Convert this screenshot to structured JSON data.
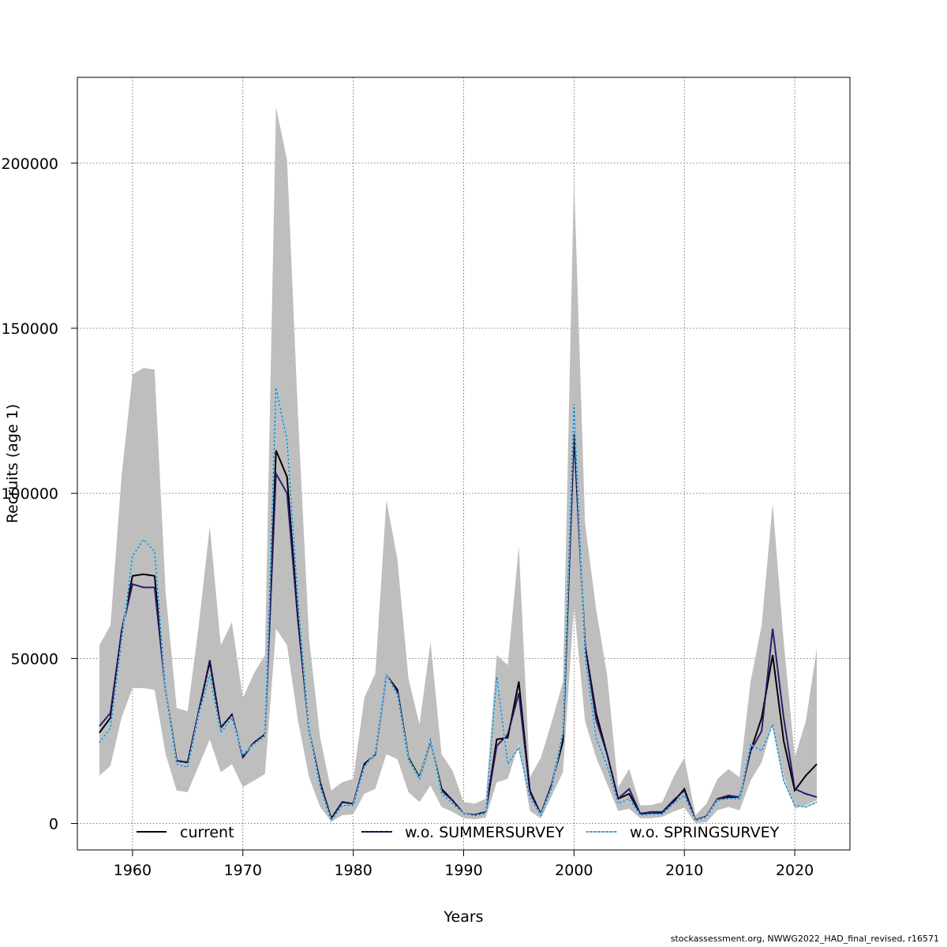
{
  "footer": "stockassessment.org, NWWG2022_HAD_final_revised, r16571",
  "chart_data": {
    "type": "line",
    "title": "",
    "xlabel": "Years",
    "ylabel": "Recruits (age 1)",
    "xlim": [
      1955,
      2025
    ],
    "ylim": [
      -8000,
      226000
    ],
    "xticks": [
      1960,
      1970,
      1980,
      1990,
      2000,
      2010,
      2020
    ],
    "yticks": [
      0,
      50000,
      100000,
      150000,
      200000
    ],
    "ytick_labels": [
      "0",
      "50000",
      "100000",
      "150000",
      "200000"
    ],
    "grid": true,
    "legend_position": "bottom",
    "colors": {
      "band": "#bebebe",
      "current": "#000000",
      "summer": "#2e1b6e",
      "spring": "#87ceeb"
    },
    "x": [
      1957,
      1958,
      1959,
      1960,
      1961,
      1962,
      1963,
      1964,
      1965,
      1966,
      1967,
      1968,
      1969,
      1970,
      1971,
      1972,
      1973,
      1974,
      1975,
      1976,
      1977,
      1978,
      1979,
      1980,
      1981,
      1982,
      1983,
      1984,
      1985,
      1986,
      1987,
      1988,
      1989,
      1990,
      1991,
      1992,
      1993,
      1994,
      1995,
      1996,
      1997,
      1998,
      1999,
      2000,
      2001,
      2002,
      2003,
      2004,
      2005,
      2006,
      2007,
      2008,
      2009,
      2010,
      2011,
      2012,
      2013,
      2014,
      2015,
      2016,
      2017,
      2018,
      2019,
      2020,
      2021,
      2022
    ],
    "band": {
      "name": "current confidence interval",
      "upper": [
        54000,
        60000,
        105000,
        136000,
        138000,
        137500,
        70000,
        35000,
        34000,
        60000,
        90000,
        54000,
        61000,
        38000,
        45500,
        51000,
        217000,
        201000,
        123000,
        56000,
        26000,
        10000,
        12500,
        13500,
        38000,
        45500,
        98000,
        80000,
        44000,
        30000,
        55000,
        21000,
        16000,
        6500,
        6000,
        7500,
        51000,
        48000,
        84000,
        14000,
        20000,
        31000,
        43000,
        196000,
        91000,
        65000,
        45000,
        11000,
        16500,
        5500,
        5600,
        6500,
        14000,
        20000,
        2500,
        6000,
        13500,
        16500,
        14000,
        43000,
        60000,
        97000,
        55000,
        20000,
        31000,
        53000
      ],
      "lower": [
        14500,
        17500,
        32000,
        41000,
        41000,
        40500,
        21000,
        10000,
        9500,
        17500,
        25500,
        15500,
        18000,
        11000,
        13000,
        15000,
        59000,
        54000,
        31000,
        14000,
        5000,
        600,
        2500,
        2800,
        9000,
        10500,
        21000,
        19500,
        9500,
        6500,
        11500,
        5000,
        3500,
        1600,
        1300,
        1800,
        12500,
        13500,
        24000,
        3800,
        1500,
        8500,
        15500,
        66000,
        31000,
        20000,
        12000,
        3800,
        4500,
        1600,
        1600,
        2000,
        3600,
        4800,
        100,
        400,
        4000,
        5000,
        4000,
        13000,
        18500,
        30000,
        14500,
        4500,
        5500,
        7000
      ]
    },
    "series": [
      {
        "name": "current",
        "values": [
          27500,
          32000,
          58000,
          75000,
          75500,
          75000,
          40000,
          19000,
          18500,
          34000,
          49000,
          29000,
          33000,
          20500,
          24500,
          27000,
          113000,
          105000,
          62000,
          28000,
          12500,
          1500,
          6500,
          6000,
          18000,
          21000,
          45000,
          40500,
          20000,
          14000,
          25000,
          10500,
          7000,
          3000,
          2600,
          3500,
          25500,
          26000,
          43000,
          10000,
          2800,
          12000,
          25000,
          118000,
          54000,
          33500,
          21000,
          7500,
          9000,
          3000,
          3000,
          3200,
          6500,
          10500,
          1000,
          2200,
          7000,
          8000,
          7500,
          22000,
          32000,
          51000,
          25000,
          10000,
          14500,
          18000
        ]
      },
      {
        "name": "w.o. SUMMERSURVEY",
        "values": [
          29500,
          33500,
          58000,
          72500,
          71500,
          71500,
          40000,
          19000,
          18500,
          34000,
          49500,
          29000,
          33000,
          20000,
          24500,
          27000,
          106000,
          100000,
          61000,
          28000,
          12500,
          1500,
          6500,
          6000,
          17500,
          21000,
          45000,
          40000,
          19500,
          13500,
          25000,
          10000,
          7000,
          3000,
          2600,
          3500,
          23500,
          27000,
          39500,
          9500,
          2800,
          12000,
          27000,
          118000,
          54000,
          31500,
          21000,
          7500,
          10500,
          3000,
          3500,
          3500,
          7000,
          10000,
          1000,
          2200,
          7500,
          8500,
          8000,
          22000,
          28000,
          59000,
          32000,
          10500,
          9000,
          8000
        ]
      },
      {
        "name": "w.o. SPRINGSURVEY",
        "values": [
          24500,
          29000,
          55000,
          81000,
          86000,
          82500,
          40000,
          18000,
          17000,
          33000,
          45000,
          27500,
          32000,
          21000,
          24000,
          26500,
          132000,
          116000,
          67000,
          28000,
          11000,
          800,
          5500,
          5500,
          17000,
          21500,
          45000,
          39000,
          19500,
          13500,
          25500,
          9000,
          6000,
          3000,
          2300,
          3100,
          44500,
          18000,
          23000,
          8000,
          2500,
          11000,
          28000,
          127000,
          51000,
          26000,
          17500,
          6000,
          7500,
          2500,
          2800,
          2800,
          6000,
          8500,
          800,
          2000,
          7000,
          7500,
          7500,
          24000,
          22000,
          30000,
          13000,
          5500,
          5000,
          6500
        ]
      }
    ]
  }
}
